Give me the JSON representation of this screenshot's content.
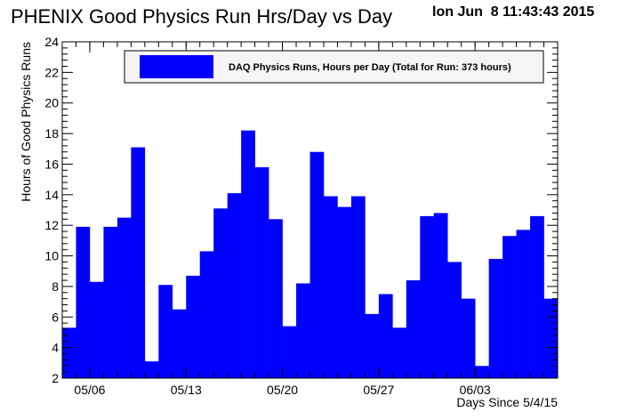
{
  "header": {
    "title": "PHENIX Good Physics Run Hrs/Day vs Day",
    "timestamp": "lon Jun  8 11:43:43 2015"
  },
  "colors": {
    "bar_fill": "#0000ff",
    "frame": "#000000",
    "legend_bg": "#f7f4f7"
  },
  "chart_data": {
    "type": "bar",
    "title": "PHENIX Good Physics Run Hrs/Day vs Day",
    "xlabel": "Days Since 5/4/15",
    "ylabel": "Hours of Good Physics Runs",
    "ylim": [
      2,
      24
    ],
    "xlim": [
      0,
      36
    ],
    "y_ticks": [
      "2",
      "4",
      "6",
      "8",
      "10",
      "12",
      "14",
      "16",
      "18",
      "20",
      "22",
      "24"
    ],
    "x_tick_labels": [
      {
        "day": 2,
        "label": "05/06"
      },
      {
        "day": 9,
        "label": "05/13"
      },
      {
        "day": 16,
        "label": "05/20"
      },
      {
        "day": 23,
        "label": "05/27"
      },
      {
        "day": 30,
        "label": "06/03"
      }
    ],
    "legend": {
      "placement": "top",
      "label": "DAQ Physics Runs, Hours per Day (Total for Run: 373 hours)"
    },
    "grid": false,
    "series": [
      {
        "name": "DAQ Physics Runs, Hours per Day (Total for Run: 373 hours)",
        "values": [
          5.3,
          11.9,
          8.3,
          11.9,
          12.5,
          17.1,
          3.1,
          8.1,
          6.5,
          8.7,
          10.3,
          13.1,
          14.1,
          18.2,
          15.8,
          12.4,
          5.4,
          8.2,
          16.8,
          13.9,
          13.2,
          13.9,
          6.2,
          7.5,
          5.3,
          8.4,
          12.6,
          12.8,
          9.6,
          7.2,
          2.8,
          9.8,
          11.3,
          11.7,
          12.6,
          7.2
        ]
      }
    ]
  }
}
